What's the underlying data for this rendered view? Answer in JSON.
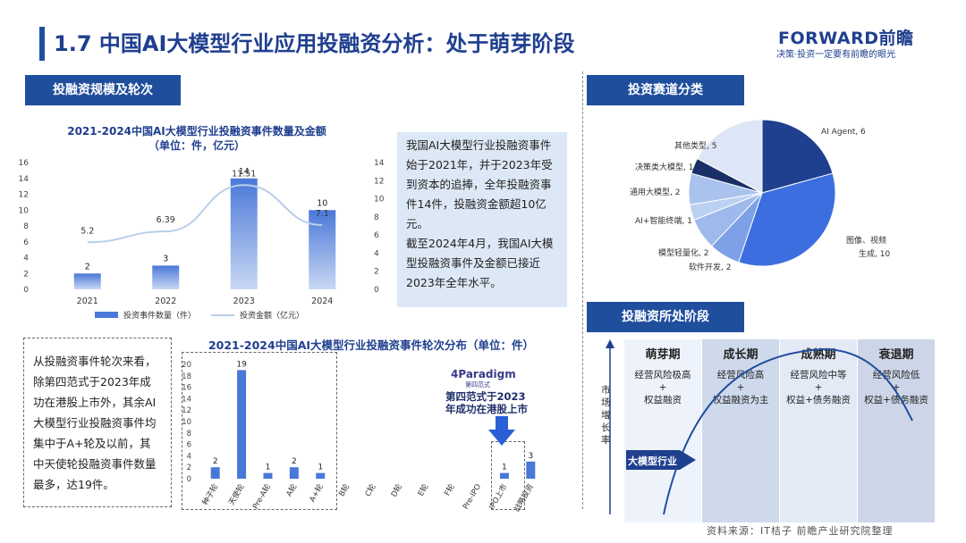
{
  "header": {
    "title": "1.7 中国AI大模型行业应用投融资分析：处于萌芽阶段",
    "logo": "FORWARD前瞻",
    "logo_sub": "决策·投资一定要有前瞻的眼光"
  },
  "sections": {
    "scale_tab": "投融资规模及轮次",
    "track_tab": "投资赛道分类",
    "stage_tab": "投融资所处阶段"
  },
  "notes": {
    "top_right": "我国AI大模型行业投融资事件始于2021年，并于2023年受到资本的追捧，全年投融资事件14件，投融资金额超10亿元。\n截至2024年4月，我国AI大模型投融资事件及金额已接近2023年全年水平。",
    "bottom_left": "从投融资事件轮次来看，除第四范式于2023年成功在港股上市外，其余AI大模型行业投融资事件均集中于A+轮及以前，其中天使轮投融资事件数量最多，达19件。"
  },
  "annotation": {
    "paradigm_logo": "4Paradigm",
    "paradigm_sub": "第四范式",
    "paradigm_note_1": "第四范式于2023",
    "paradigm_note_2": "年成功在港股上市"
  },
  "source": "资料来源：IT桔子 前瞻产业研究院整理",
  "chart_data": [
    {
      "type": "bar",
      "title": "2021-2024中国AI大模型行业投融资事件数量及金额",
      "subtitle": "（单位：件，亿元）",
      "categories": [
        "2021",
        "2022",
        "2023",
        "2024"
      ],
      "series": [
        {
          "name": "投资事件数量（件）",
          "type": "bar",
          "axis": "left",
          "values": [
            2,
            3,
            14,
            10
          ],
          "color": "#4a78d8"
        },
        {
          "name": "投资金额（亿元）",
          "type": "line",
          "axis": "right",
          "values": [
            5.2,
            6.39,
            11.51,
            7.1
          ],
          "color": "#b8cfea"
        }
      ],
      "y_left": {
        "min": 0,
        "max": 16,
        "ticks": [
          0,
          2,
          4,
          6,
          8,
          10,
          12,
          14,
          16
        ]
      },
      "y_right": {
        "min": 0,
        "max": 14,
        "ticks": [
          0,
          2,
          4,
          6,
          8,
          10,
          12,
          14
        ]
      },
      "legend": "bottom",
      "grid": false
    },
    {
      "type": "bar",
      "title": "2021-2024中国AI大模型行业投融资事件轮次分布（单位：件）",
      "categories": [
        "种子轮",
        "天使轮",
        "Pre-A轮",
        "A轮",
        "A+轮",
        "B轮",
        "C轮",
        "D轮",
        "E轮",
        "F轮",
        "Pre-IPO",
        "IPO上市",
        "战略投资"
      ],
      "values": [
        2,
        19,
        1,
        2,
        1,
        0,
        0,
        0,
        0,
        0,
        0,
        1,
        3
      ],
      "value_labels": [
        "2",
        "19",
        "1",
        "2",
        "1",
        "",
        "",
        "",
        "",
        "",
        "",
        "1",
        "3"
      ],
      "y": {
        "min": 0,
        "max": 20,
        "ticks": [
          0,
          2,
          4,
          6,
          8,
          10,
          12,
          14,
          16,
          18,
          20
        ]
      },
      "color": "#4a78d8",
      "grid": false
    },
    {
      "type": "pie",
      "title": "",
      "slices": [
        {
          "label": "AI Agent, 6",
          "value": 6,
          "color": "#1f3f8f"
        },
        {
          "label": "图像、视频生成, 10",
          "value": 10,
          "color": "#3d6ee0"
        },
        {
          "label": "软件开发, 2",
          "value": 2,
          "color": "#7da0e6"
        },
        {
          "label": "模型轻量化, 2",
          "value": 2,
          "color": "#9fb9ec"
        },
        {
          "label": "AI+智能终端, 1",
          "value": 1,
          "color": "#bcd0f2"
        },
        {
          "label": "通用大模型, 2",
          "value": 2,
          "color": "#a9c2ee"
        },
        {
          "label": "决策类大模型, 1",
          "value": 1,
          "color": "#1a2f66"
        },
        {
          "label": "其他类型, 5",
          "value": 5,
          "color": "#dce6f6"
        }
      ]
    }
  ],
  "stages": {
    "y_axis_label": "市场增长率",
    "industry_label": "大模型行业",
    "columns": [
      {
        "name": "萌芽期",
        "line1": "经营风险极高",
        "line2": "+",
        "line3": "权益融资",
        "color": "#eef3fb"
      },
      {
        "name": "成长期",
        "line1": "经营风险高",
        "line2": "+",
        "line3": "权益融资为主",
        "color": "#cfd9ec"
      },
      {
        "name": "成熟期",
        "line1": "经营风险中等",
        "line2": "+",
        "line3": "权益+债务融资",
        "color": "#e3eaf6"
      },
      {
        "name": "衰退期",
        "line1": "经营风险低",
        "line2": "+",
        "line3": "权益+债务融资",
        "color": "#cdd6e8"
      }
    ]
  }
}
